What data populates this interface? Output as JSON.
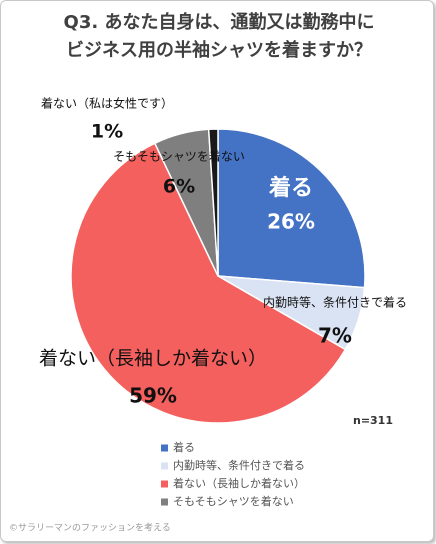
{
  "chart_data": {
    "type": "pie",
    "title": [
      "Q3. あなた自身は、通勤又は勤務中に",
      "ビジネス用の半袖シャツを着ますか？"
    ],
    "categories": [
      "着る",
      "内勤時等、条件付きで着る",
      "着ない（長袖しか着ない）",
      "そもそもシャツを着ない",
      "着ない（私は女性です）"
    ],
    "values": [
      26,
      7,
      59,
      6,
      1
    ],
    "value_labels": [
      "26%",
      "7%",
      "59%",
      "6%",
      "1%"
    ],
    "colors": [
      "#4472c4",
      "#dae3f3",
      "#f4605e",
      "#7f7f7f",
      "#1a1a1a"
    ],
    "note": "n=311",
    "source": "©サラリーマンのファッションを考える"
  }
}
